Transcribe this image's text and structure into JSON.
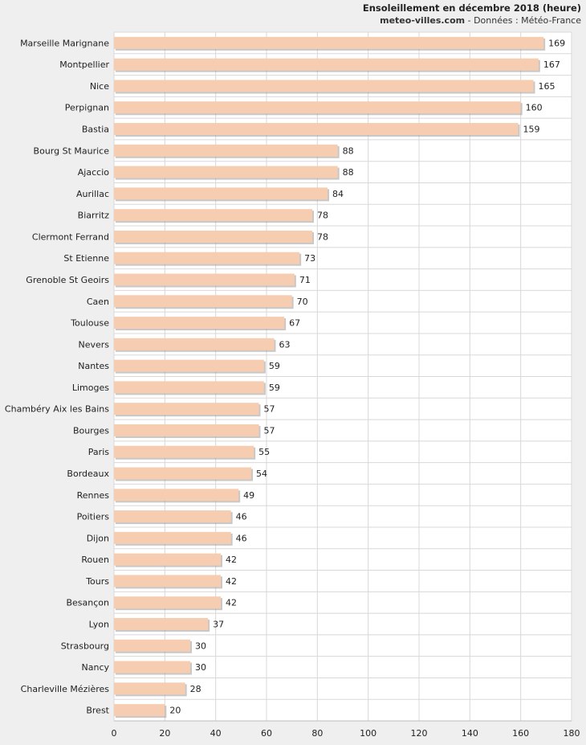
{
  "header": {
    "title": "Ensoleillement en décembre 2018 (heure)",
    "site": "meteo-villes.com",
    "source": " - Données : Météo-France"
  },
  "colors": {
    "bar": "#f6cdb0",
    "bar_shadow": "#9a9a9a",
    "grid": "#d8d8d8",
    "plot_bg": "#ffffff",
    "page_bg": "#efefef"
  },
  "chart_data": {
    "type": "bar",
    "orientation": "horizontal",
    "title": "Ensoleillement en décembre 2018 (heure)",
    "xlim": [
      0,
      180
    ],
    "xticks": [
      0,
      20,
      40,
      60,
      80,
      100,
      120,
      140,
      160,
      180
    ],
    "grid": true,
    "categories": [
      "Marseille Marignane",
      "Montpellier",
      "Nice",
      "Perpignan",
      "Bastia",
      "Bourg St Maurice",
      "Ajaccio",
      "Aurillac",
      "Biarritz",
      "Clermont Ferrand",
      "St Etienne",
      "Grenoble St Geoirs",
      "Caen",
      "Toulouse",
      "Nevers",
      "Nantes",
      "Limoges",
      "Chambéry Aix les Bains",
      "Bourges",
      "Paris",
      "Bordeaux",
      "Rennes",
      "Poitiers",
      "Dijon",
      "Rouen",
      "Tours",
      "Besançon",
      "Lyon",
      "Strasbourg",
      "Nancy",
      "Charleville Mézières",
      "Brest"
    ],
    "values": [
      169,
      167,
      165,
      160,
      159,
      88,
      88,
      84,
      78,
      78,
      73,
      71,
      70,
      67,
      63,
      59,
      59,
      57,
      57,
      55,
      54,
      49,
      46,
      46,
      42,
      42,
      42,
      37,
      30,
      30,
      28,
      20
    ]
  }
}
